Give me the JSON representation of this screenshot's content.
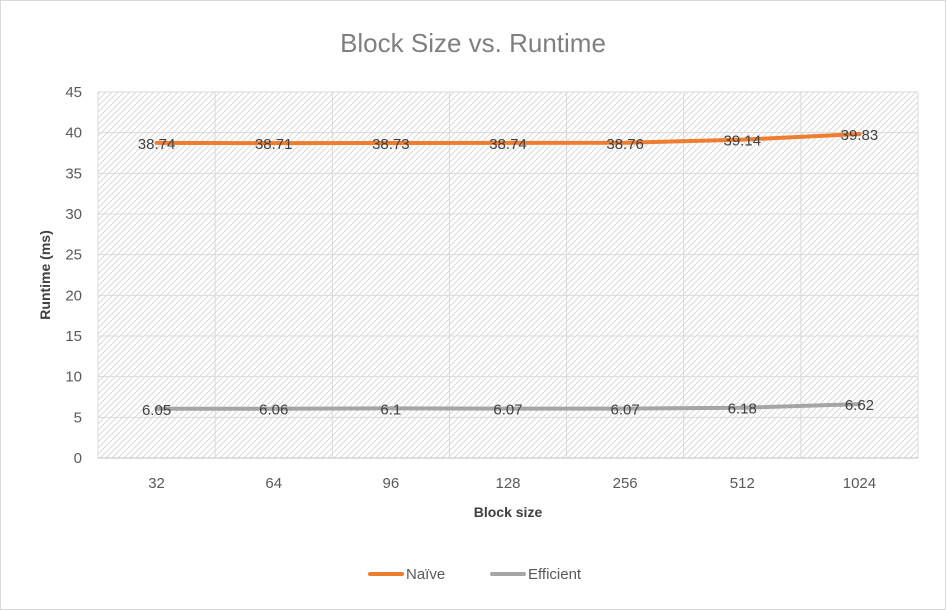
{
  "chart_data": {
    "type": "line",
    "title": "Block Size vs. Runtime",
    "xlabel": "Block size",
    "ylabel": "Runtime (ms)",
    "categories": [
      "32",
      "64",
      "96",
      "128",
      "256",
      "512",
      "1024"
    ],
    "ylim": [
      0,
      45
    ],
    "yticks": [
      0,
      5,
      10,
      15,
      20,
      25,
      30,
      35,
      40,
      45
    ],
    "grid": true,
    "legend": "bottom",
    "series": [
      {
        "name": "Naïve",
        "color": "#ed7d31",
        "values": [
          38.74,
          38.71,
          38.73,
          38.74,
          38.76,
          39.14,
          39.83
        ]
      },
      {
        "name": "Efficient",
        "color": "#a5a5a5",
        "values": [
          6.05,
          6.06,
          6.1,
          6.07,
          6.07,
          6.18,
          6.62
        ]
      }
    ]
  }
}
